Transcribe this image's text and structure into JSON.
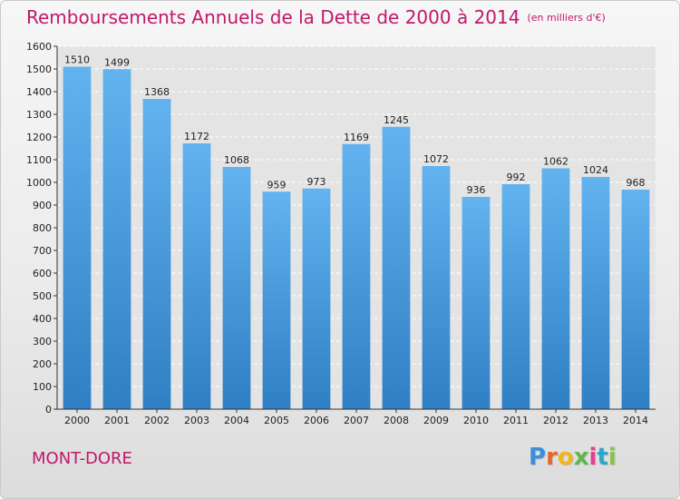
{
  "header": {
    "title": "Remboursements Annuels de la Dette de 2000 à 2014",
    "unit": "(en milliers d'€)"
  },
  "footer": {
    "commune": "MONT-DORE",
    "logo": "Proxiti"
  },
  "colors": {
    "accent": "#c0186a",
    "bar_light": "#62b3ef",
    "bar_dark": "#2f7fc4"
  },
  "chart_data": {
    "type": "bar",
    "title": "Remboursements Annuels de la Dette de 2000 à 2014",
    "subtitle": "(en milliers d'€)",
    "xlabel": "",
    "ylabel": "",
    "categories": [
      "2000",
      "2001",
      "2002",
      "2003",
      "2004",
      "2005",
      "2006",
      "2007",
      "2008",
      "2009",
      "2010",
      "2011",
      "2012",
      "2013",
      "2014"
    ],
    "values": [
      1510,
      1499,
      1368,
      1172,
      1068,
      959,
      973,
      1169,
      1245,
      1072,
      936,
      992,
      1062,
      1024,
      968
    ],
    "ylim": [
      0,
      1600
    ],
    "yticks": [
      0,
      100,
      200,
      300,
      400,
      500,
      600,
      700,
      800,
      900,
      1000,
      1100,
      1200,
      1300,
      1400,
      1500,
      1600
    ],
    "grid": true,
    "legend": "none"
  }
}
